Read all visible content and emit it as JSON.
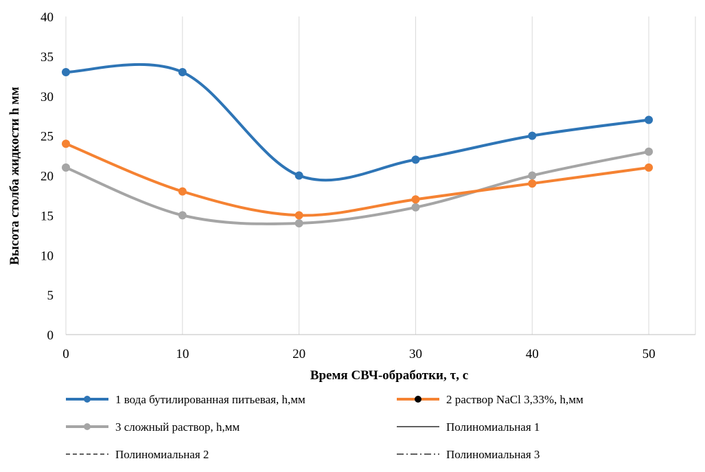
{
  "chart_data": {
    "type": "line",
    "title": "",
    "xlabel": "Время СВЧ-обработки, τ, с",
    "ylabel": "Высота столба жидкости h  мм",
    "xlim": [
      0,
      54
    ],
    "ylim": [
      0,
      40
    ],
    "x_ticks": [
      0,
      10,
      20,
      30,
      40,
      50
    ],
    "y_ticks": [
      0,
      5,
      10,
      15,
      20,
      25,
      30,
      35,
      40
    ],
    "grid": "vertical",
    "legend_position": "bottom",
    "x": [
      0,
      10,
      20,
      30,
      40,
      50
    ],
    "series": [
      {
        "name": "1 вода бутилированная питьевая, h,мм",
        "values": [
          33,
          33,
          20,
          22,
          25,
          27
        ],
        "color": "#2e75b6",
        "style": "smooth-markers"
      },
      {
        "name": "2 раствор NaCl 3,33%, h,мм",
        "values": [
          24,
          18,
          15,
          17,
          19,
          21
        ],
        "color": "#f58232",
        "style": "smooth-markers"
      },
      {
        "name": "3 сложный раствор, h,мм",
        "values": [
          21,
          15,
          14,
          16,
          20,
          23
        ],
        "color": "#a5a5a5",
        "style": "smooth-markers"
      }
    ],
    "trendlines": [
      {
        "name": "Полиномиальная 1",
        "of_series": 0,
        "type": "polynomial",
        "order": 5,
        "color": "#000000",
        "dash": "solid"
      },
      {
        "name": "Полиномиальная 2",
        "of_series": 1,
        "type": "polynomial",
        "order": 2,
        "color": "#000000",
        "dash": "dashed"
      },
      {
        "name": "Полиномиальная 3",
        "of_series": 2,
        "type": "polynomial",
        "order": 3,
        "color": "#000000",
        "dash": "dash-dot"
      }
    ],
    "legend": [
      {
        "label": "1 вода бутилированная питьевая, h,мм",
        "kind": "series",
        "ref": 0
      },
      {
        "label": "2 раствор NaCl 3,33%, h,мм",
        "kind": "series",
        "ref": 1
      },
      {
        "label": "3 сложный раствор, h,мм",
        "kind": "series",
        "ref": 2
      },
      {
        "label": "Полиномиальная 1",
        "kind": "trend",
        "ref": 0
      },
      {
        "label": "Полиномиальная 2",
        "kind": "trend",
        "ref": 1
      },
      {
        "label": "Полиномиальная 3",
        "kind": "trend",
        "ref": 2
      }
    ]
  }
}
